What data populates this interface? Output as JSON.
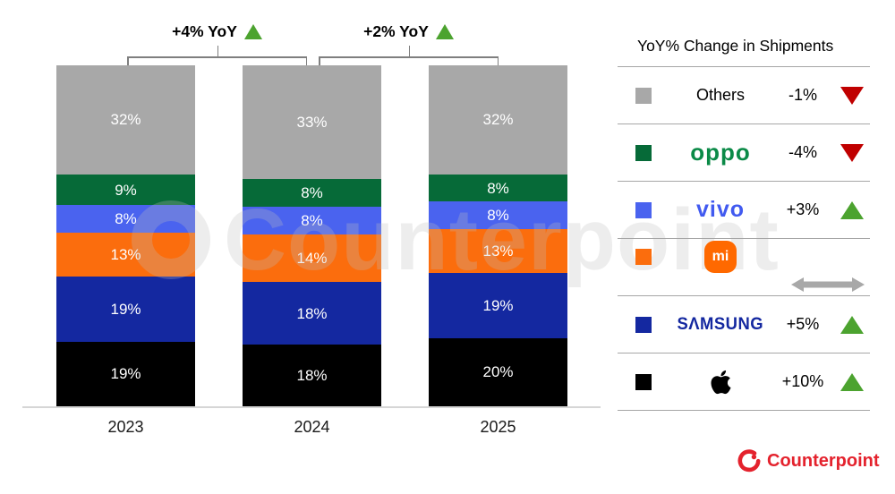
{
  "watermark": "Counterpoint",
  "chart_data": {
    "type": "bar",
    "stacked": true,
    "unit": "%",
    "categories": [
      "2023",
      "2024",
      "2025"
    ],
    "series": [
      {
        "name": "Apple",
        "color": "#000000",
        "values": [
          19,
          18,
          20
        ]
      },
      {
        "name": "Samsung",
        "color": "#1428a0",
        "values": [
          19,
          18,
          19
        ]
      },
      {
        "name": "Xiaomi",
        "color": "#fb6d0d",
        "values": [
          13,
          14,
          13
        ]
      },
      {
        "name": "vivo",
        "color": "#4a63ef",
        "values": [
          8,
          8,
          8
        ]
      },
      {
        "name": "OPPO",
        "color": "#066a38",
        "values": [
          9,
          8,
          8
        ]
      },
      {
        "name": "Others",
        "color": "#a8a8a8",
        "values": [
          32,
          33,
          32
        ]
      }
    ],
    "growth_annotations": [
      {
        "from": "2023",
        "to": "2024",
        "label": "+4% YoY",
        "direction": "up"
      },
      {
        "from": "2024",
        "to": "2025",
        "label": "+2% YoY",
        "direction": "up"
      }
    ],
    "legend_position": "right",
    "grid": false,
    "ylim": [
      0,
      100
    ]
  },
  "legend": {
    "title": "YoY% Change in Shipments",
    "rows": [
      {
        "brand": "Others",
        "logo": "text",
        "swatch": "#a8a8a8",
        "change": "-1%",
        "direction": "down"
      },
      {
        "brand": "oppo",
        "logo": "oppo",
        "swatch": "#066a38",
        "change": "-4%",
        "direction": "down"
      },
      {
        "brand": "vivo",
        "logo": "vivo",
        "swatch": "#4a63ef",
        "change": "+3%",
        "direction": "up"
      },
      {
        "brand": "mi",
        "logo": "mi",
        "swatch": "#fb6d0d",
        "change": "",
        "direction": "flat"
      },
      {
        "brand": "SΛMSUNG",
        "logo": "samsung",
        "swatch": "#1428a0",
        "change": "+5%",
        "direction": "up"
      },
      {
        "brand": "Apple",
        "logo": "apple",
        "swatch": "#000000",
        "change": "+10%",
        "direction": "up"
      }
    ],
    "colors": {
      "up": "#4ca32f",
      "down": "#c00000",
      "flat": "#a8a8a8"
    }
  },
  "footer": {
    "brand": "Counterpoint",
    "color": "#e4222d"
  }
}
